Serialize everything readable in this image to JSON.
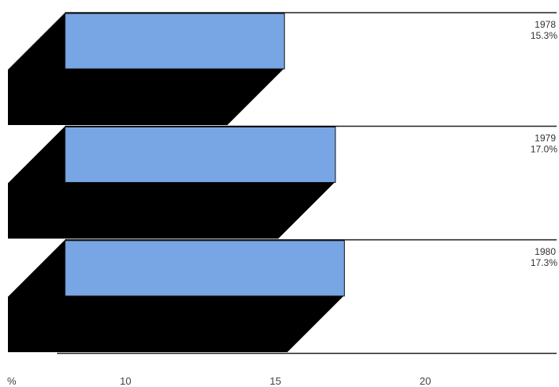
{
  "chart_data": {
    "type": "bar",
    "orientation": "horizontal",
    "style": "3d-shadow",
    "categories": [
      "1978",
      "1979",
      "1980"
    ],
    "values": [
      15.3,
      17.0,
      17.3
    ],
    "value_labels": [
      "15.3%",
      "17.0%",
      "17.3%"
    ],
    "xlim": [
      7,
      23
    ],
    "xticks": [
      10,
      15,
      20
    ],
    "x_unit_label": "%",
    "grid": false,
    "legend": "none",
    "colors": {
      "bar": "#78a6e4",
      "shadow": "#000000",
      "separator": "#222222",
      "background": "#ffffff"
    }
  }
}
